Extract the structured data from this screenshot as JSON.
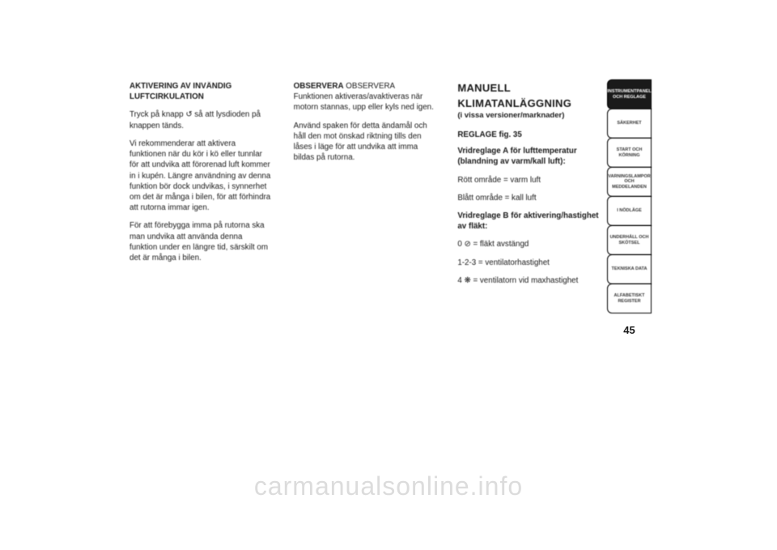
{
  "page_number": "45",
  "watermark": "carmanualsonline.info",
  "col1": {
    "heading": "AKTIVERING AV INVÄNDIG LUFTCIRKULATION",
    "p1a": "Tryck på knapp ",
    "p1icon": "↺",
    "p1b": " så att lysdioden på knappen tänds.",
    "p2": "Vi rekommenderar att aktivera funktionen när du kör i kö eller tunnlar för att undvika att förorenad luft kommer in i kupén. Längre användning av denna funktion bör dock undvikas, i synnerhet om det är många i bilen, för att förhindra att rutorna immar igen.",
    "p3": "För att förebygga imma på rutorna ska man undvika att använda denna funktion under en längre tid, särskilt om det är många i bilen."
  },
  "col2": {
    "p1": "OBSERVERA Funktionen aktiveras/avaktiveras när motorn stannas, upp eller kyls ned igen.",
    "p2": "Använd spaken för detta ändamål och håll den mot önskad riktning tills den låses i läge för att undvika att imma bildas på rutorna."
  },
  "col3": {
    "title1": "MANUELL",
    "title2": "KLIMATANLÄGGNING",
    "subtitle": "(i vissa versioner/marknader)",
    "section": "REGLAGE fig. 35",
    "line1a": "Vridreglage A för lufttemperatur",
    "line1b": "(blandning av varm/kall luft):",
    "line2": "Rött område = varm luft",
    "line3": "Blått område = kall luft",
    "line4": "Vridreglage B för aktivering/hastighet av fläkt:",
    "line5a": "0 ",
    "line5icon": "⊘",
    "line5b": " = fläkt avstängd",
    "line6": "1-2-3 = ventilatorhastighet",
    "line7a": "4 ",
    "line7icon": "❋",
    "line7b": " = ventilatorn vid maxhastighet"
  },
  "tabs": [
    {
      "label": "INSTRUMENTPANEL OCH REGLAGE",
      "active": true
    },
    {
      "label": "SÄKERHET",
      "active": false
    },
    {
      "label": "START OCH KÖRNING",
      "active": false
    },
    {
      "label": "VARNINGSLAMPOR OCH MEDDELANDEN",
      "active": false
    },
    {
      "label": "I NÖDLÄGE",
      "active": false
    },
    {
      "label": "UNDERHÅLL OCH SKÖTSEL",
      "active": false
    },
    {
      "label": "TEKNISKA DATA",
      "active": false
    },
    {
      "label": "ALFABETISKT REGISTER",
      "active": false
    }
  ],
  "colors": {
    "background": "#ffffff",
    "text": "#1a1a1a",
    "tab_active_bg": "#1a1a1a",
    "tab_active_fg": "#ffffff",
    "tab_border": "#000000",
    "watermark": "#dcdcdc"
  },
  "typography": {
    "body_fontsize_pt": 7,
    "heading_fontsize_pt": 10,
    "pagenum_fontsize_pt": 10,
    "watermark_fontsize_pt": 24
  }
}
